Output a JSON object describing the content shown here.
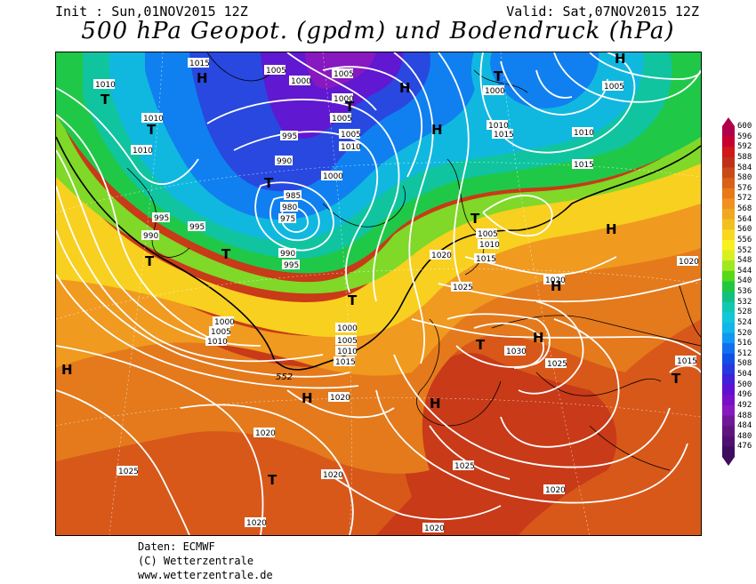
{
  "header": {
    "init": "Init : Sun,01NOV2015 12Z",
    "valid": "Valid: Sat,07NOV2015 12Z",
    "title": "500 hPa Geopot. (gpdm) und Bodendruck (hPa)"
  },
  "footer": {
    "line1": "Daten: ECMWF",
    "line2": "(C) Wetterzentrale",
    "line3": "www.wetterzentrale.de"
  },
  "legend": {
    "values": [
      "600",
      "596",
      "592",
      "588",
      "584",
      "580",
      "576",
      "572",
      "568",
      "564",
      "560",
      "556",
      "552",
      "548",
      "544",
      "540",
      "536",
      "532",
      "528",
      "524",
      "520",
      "516",
      "512",
      "508",
      "504",
      "500",
      "496",
      "492",
      "488",
      "484",
      "480",
      "476"
    ],
    "colors": [
      "#b0004a",
      "#c8002e",
      "#d01818",
      "#c03018",
      "#c84a18",
      "#d86018",
      "#e87818",
      "#f09020",
      "#f0a820",
      "#f0c020",
      "#f8d820",
      "#f8f020",
      "#d8f020",
      "#a0e820",
      "#58d818",
      "#20c840",
      "#10c080",
      "#10c8b0",
      "#10c8d8",
      "#10b8e8",
      "#1098f0",
      "#1070f0",
      "#1050e8",
      "#2838e0",
      "#4020d8",
      "#6010d0",
      "#7810c8",
      "#8818c0",
      "#701898",
      "#601480",
      "#501070",
      "#400c60"
    ]
  },
  "map": {
    "isobar_labels": [
      "1015",
      "1010",
      "1005",
      "1000",
      "1005",
      "1000",
      "1005",
      "1000",
      "1005",
      "1010",
      "1015",
      "1010",
      "1015",
      "1010",
      "1010",
      "995",
      "990",
      "985",
      "980",
      "975",
      "990",
      "995",
      "1000",
      "995",
      "990",
      "995",
      "1000",
      "1005",
      "1010",
      "1000",
      "1005",
      "1010",
      "1015",
      "1020",
      "1020",
      "1015",
      "1005",
      "1010",
      "1020",
      "1025",
      "1020",
      "1030",
      "1025",
      "1020",
      "1025",
      "1020",
      "1020",
      "1015",
      "1020",
      "1025",
      "1020",
      "1025",
      "1000",
      "1005",
      "1010"
    ],
    "pressure_centers": [
      "T",
      "H",
      "T",
      "T",
      "H",
      "H",
      "T",
      "H",
      "T",
      "T",
      "T",
      "T",
      "T",
      "T",
      "H",
      "H",
      "H",
      "H",
      "T",
      "H",
      "T",
      "H",
      "T"
    ],
    "contour_label": "552"
  }
}
